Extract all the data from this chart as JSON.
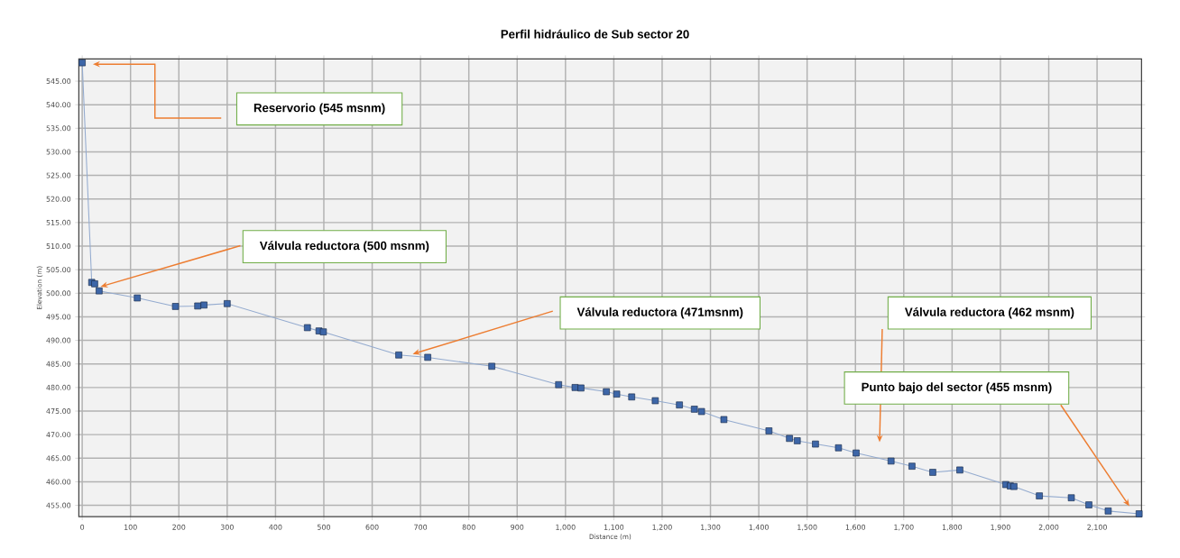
{
  "chart_data": {
    "type": "line",
    "title": "Perfil hidráulico de Sub sector 20",
    "xlabel": "Distance (m)",
    "ylabel": "Elevation (m)",
    "x": [
      0,
      19.7,
      25.8,
      35,
      114,
      193,
      239,
      252,
      300,
      466,
      490,
      499,
      655,
      715,
      847.5,
      985.8,
      1019.8,
      1032,
      1084.6,
      1106,
      1137,
      1185.8,
      1235.8,
      1266.7,
      1281.5,
      1327.8,
      1421,
      1463.5,
      1479.6,
      1517.3,
      1564.9,
      1601.4,
      1673.7,
      1717,
      1760,
      1816,
      1911,
      1920.5,
      1928,
      1980.6,
      2046.7,
      2083,
      2123,
      2187
    ],
    "series": [
      {
        "color": "#3d66a8",
        "values": [
          548.9,
          502.3,
          502.0,
          500.5,
          499.0,
          497.2,
          497.3,
          497.5,
          497.8,
          492.7,
          492.0,
          491.8,
          486.9,
          486.4,
          484.5,
          480.6,
          480.0,
          479.9,
          479.1,
          478.6,
          478.0,
          477.2,
          476.3,
          475.4,
          474.9,
          473.2,
          470.8,
          469.2,
          468.7,
          468.0,
          467.2,
          466.1,
          464.4,
          463.3,
          462.0,
          462.5,
          459.4,
          459.1,
          459.0,
          457.0,
          456.6,
          455.1,
          453.8,
          453.2
        ]
      }
    ],
    "xlim": [
      -7,
      2192
    ],
    "ylim": [
      452.6,
      549.7
    ],
    "xticks": [
      0,
      100,
      200,
      300,
      400,
      500,
      600,
      700,
      800,
      900,
      {
        "value": 1000,
        "label": "1,000"
      },
      {
        "value": 1100,
        "label": "1,100"
      },
      {
        "value": 1200,
        "label": "1,200"
      },
      {
        "value": 1300,
        "label": "1,300"
      },
      {
        "value": 1400,
        "label": "1,400"
      },
      {
        "value": 1500,
        "label": "1,500"
      },
      {
        "value": 1600,
        "label": "1,600"
      },
      {
        "value": 1700,
        "label": "1,700"
      },
      {
        "value": 1800,
        "label": "1,800"
      },
      {
        "value": 1900,
        "label": "1,900"
      },
      {
        "value": 2000,
        "label": "2,000"
      },
      {
        "value": 2100,
        "label": "2,100"
      }
    ],
    "yticks": [
      {
        "value": 455,
        "label": "455.00"
      },
      {
        "value": 460,
        "label": "460.00"
      },
      {
        "value": 465,
        "label": "465.00"
      },
      {
        "value": 470,
        "label": "470.00"
      },
      {
        "value": 475,
        "label": "475.00"
      },
      {
        "value": 480,
        "label": "480.00"
      },
      {
        "value": 485,
        "label": "485.00"
      },
      {
        "value": 490,
        "label": "490.00"
      },
      {
        "value": 495,
        "label": "495.00"
      },
      {
        "value": 500,
        "label": "500.00"
      },
      {
        "value": 505,
        "label": "505.00"
      },
      {
        "value": 510,
        "label": "510.00"
      },
      {
        "value": 515,
        "label": "515.00"
      },
      {
        "value": 520,
        "label": "520.00"
      },
      {
        "value": 525,
        "label": "525.00"
      },
      {
        "value": 530,
        "label": "530.00"
      },
      {
        "value": 535,
        "label": "535.00"
      },
      {
        "value": 540,
        "label": "540.00"
      },
      {
        "value": 545,
        "label": "545.00"
      }
    ],
    "annotations": [
      "Reservorio (545 msnm)",
      "Válvula reductora (500 msnm)",
      "Válvula reductora (471msnm)",
      "Válvula reductora (462 msnm)",
      "Punto bajo del sector (455 msnm)"
    ],
    "grid": true,
    "marker": "square",
    "line_style": "solid"
  }
}
